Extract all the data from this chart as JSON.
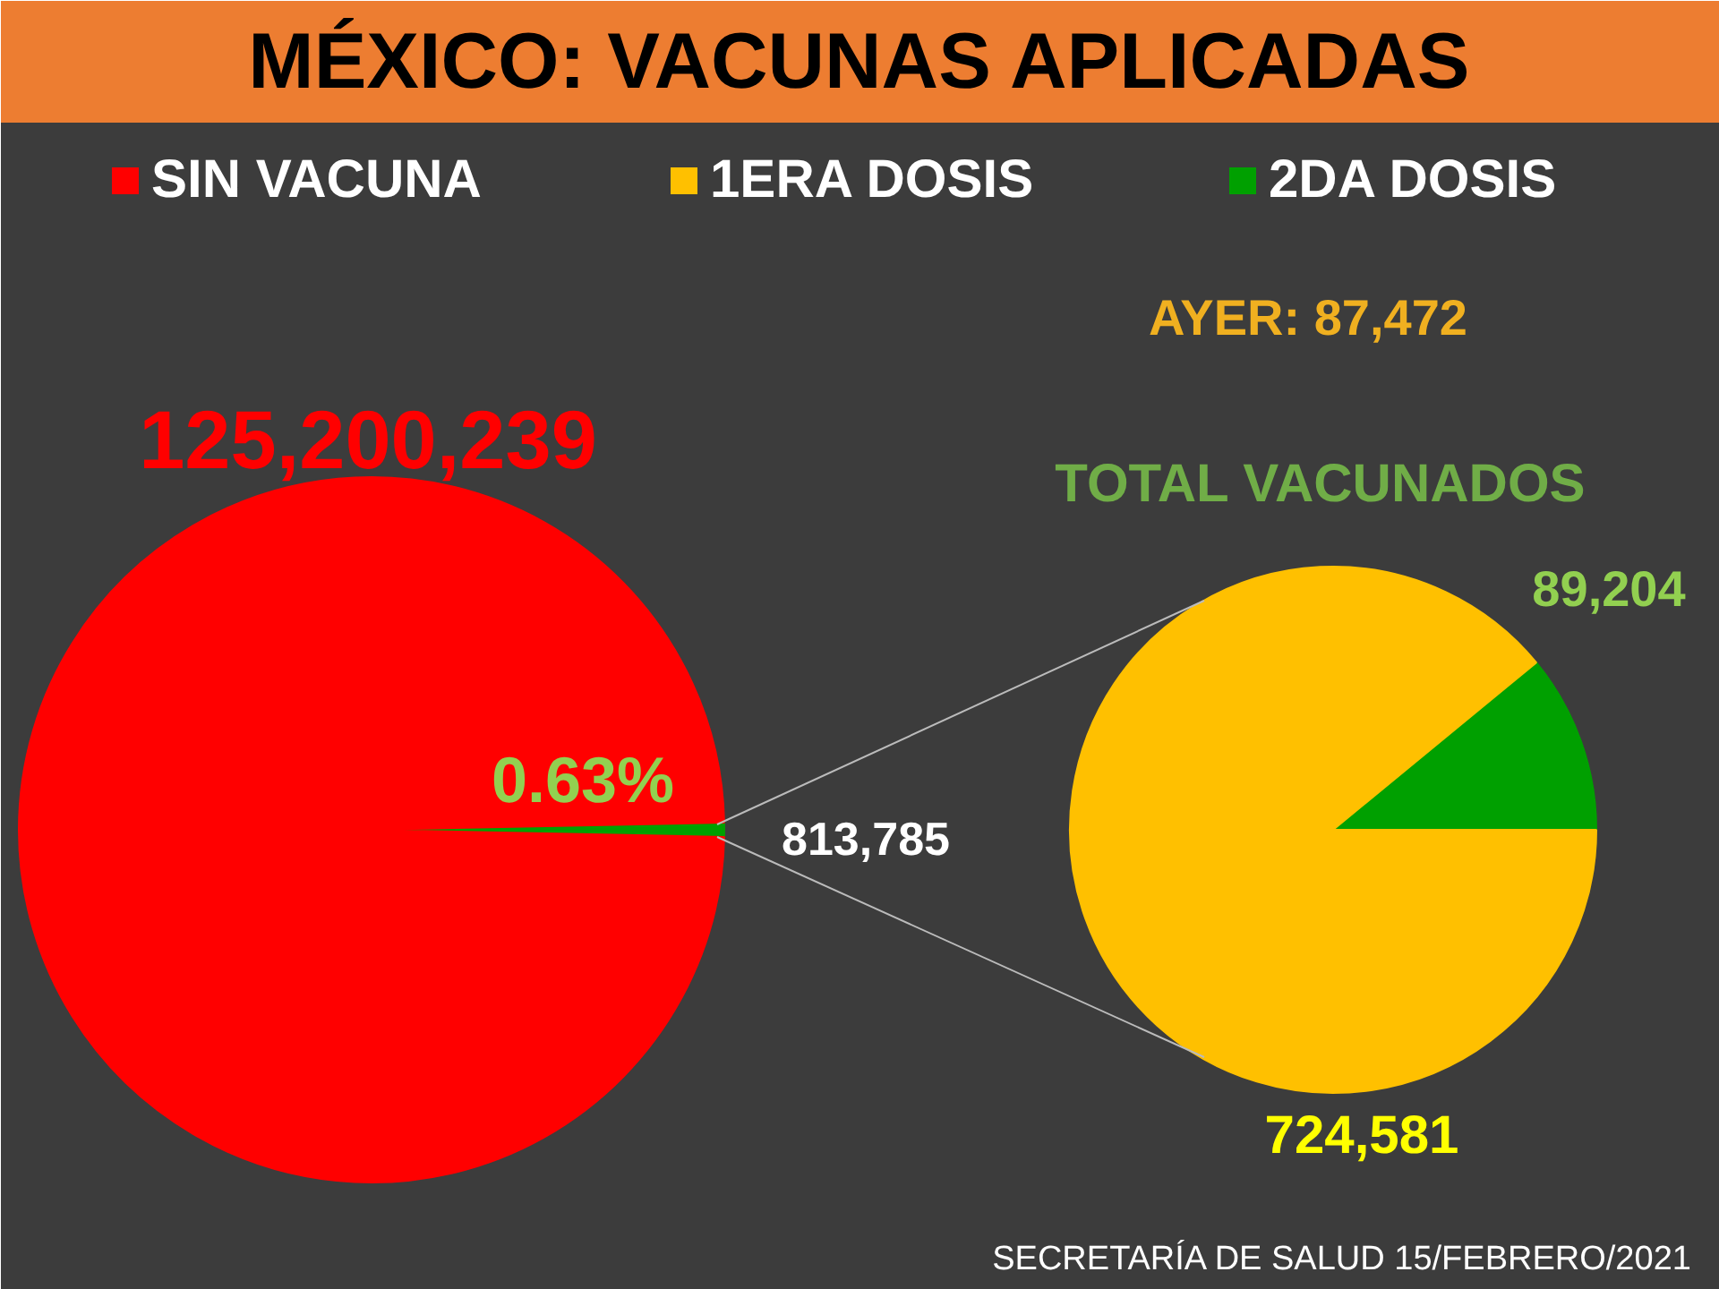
{
  "chart_data": [
    {
      "type": "pie",
      "title": "MÉXICO: VACUNAS APLICADAS",
      "categories": [
        "SIN VACUNA",
        null
      ],
      "values": [
        125200239,
        813785
      ],
      "colors": [
        "#ff0000",
        "#00a000"
      ],
      "value_labels": [
        "125,200,239",
        "813,785"
      ],
      "legend": "top",
      "annotations": [
        "0.63%",
        "SECRETARÍA DE SALUD 15/FEBRERO/2021"
      ]
    },
    {
      "type": "pie",
      "title": "TOTAL VACUNADOS",
      "categories": [
        "1ERA DOSIS",
        "2DA DOSIS"
      ],
      "values": [
        724581,
        89204
      ],
      "colors": [
        "#ffc000",
        "#00a000"
      ],
      "value_labels": [
        "724,581",
        "89,204"
      ],
      "legend": "top",
      "annotations": [
        "AYER: 87,472"
      ]
    }
  ]
}
